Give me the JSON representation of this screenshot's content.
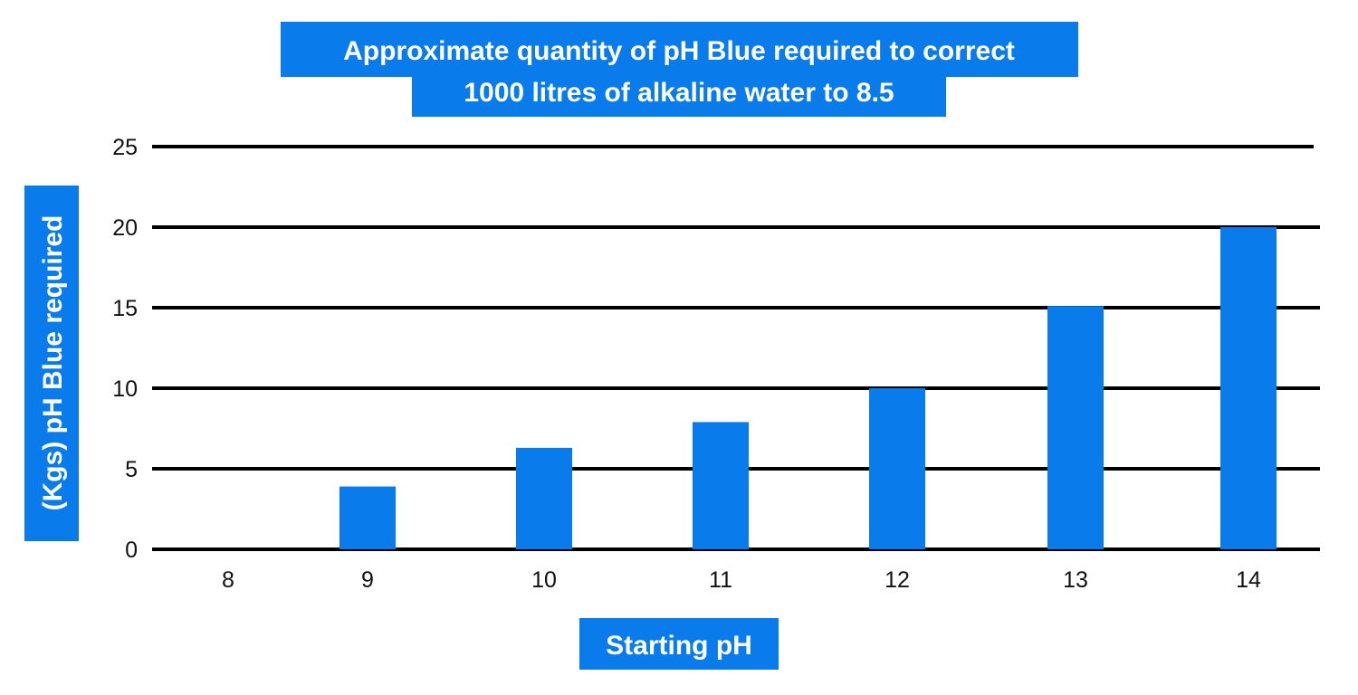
{
  "chart_data": {
    "type": "bar",
    "title": [
      "Approximate quantity of pH Blue required to correct",
      "1000 litres of alkaline water to 8.5"
    ],
    "xlabel": "Starting pH",
    "ylabel": "(Kgs) pH Blue required",
    "categories": [
      "8",
      "9",
      "10",
      "11",
      "12",
      "13",
      "14"
    ],
    "values": [
      0,
      3.9,
      6.3,
      7.9,
      10,
      15.1,
      20
    ],
    "ylim": [
      0,
      25
    ],
    "yticks": [
      "0",
      "5",
      "10",
      "15",
      "20",
      "25"
    ],
    "grid": true,
    "legend": "none",
    "colors": {
      "bar": "#0a7bea",
      "label_background": "#0a7bea",
      "label_text": "#ffffff",
      "gridline": "#000000"
    }
  }
}
